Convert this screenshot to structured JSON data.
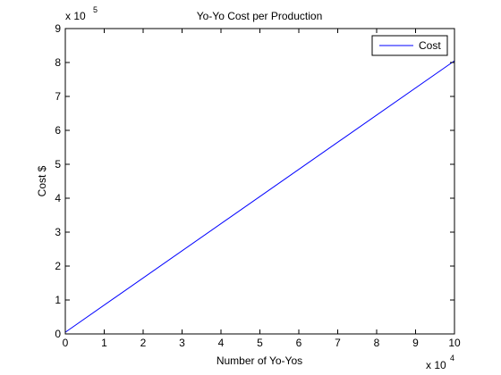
{
  "chart_data": {
    "type": "line",
    "title": "Yo-Yo Cost per Production",
    "xlabel": "Number of Yo-Yos",
    "ylabel": "Cost $",
    "xlim": [
      0,
      100000
    ],
    "ylim": [
      0,
      900000
    ],
    "x_ticks": [
      0,
      10000,
      20000,
      30000,
      40000,
      50000,
      60000,
      70000,
      80000,
      90000,
      100000
    ],
    "x_tick_labels": [
      "0",
      "1",
      "2",
      "3",
      "4",
      "5",
      "6",
      "7",
      "8",
      "9",
      "10"
    ],
    "y_ticks": [
      0,
      100000,
      200000,
      300000,
      400000,
      500000,
      600000,
      700000,
      800000,
      900000
    ],
    "y_tick_labels": [
      "0",
      "1",
      "2",
      "3",
      "4",
      "5",
      "6",
      "7",
      "8",
      "9"
    ],
    "x_multiplier": {
      "base": "x 10",
      "exponent": "4"
    },
    "y_multiplier": {
      "base": "x 10",
      "exponent": "5"
    },
    "grid": false,
    "legend_position": "top-right",
    "series": [
      {
        "name": "Cost",
        "color": "#0000ff",
        "x": [
          0,
          100000
        ],
        "y": [
          5000,
          805000
        ]
      }
    ]
  }
}
